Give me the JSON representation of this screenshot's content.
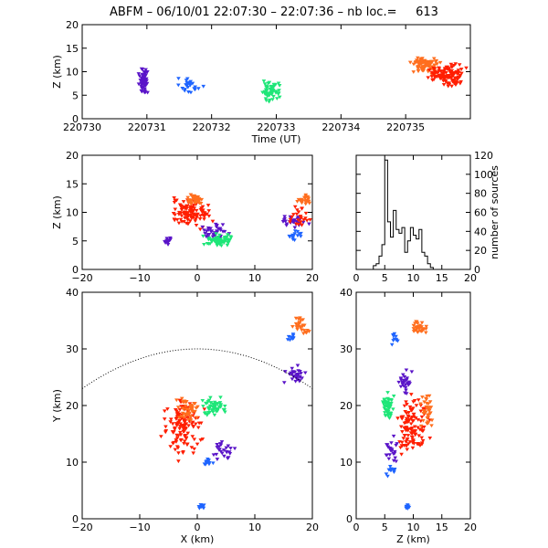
{
  "title": "ABFM – 06/10/01 22:07:30 – 22:07:36 – nb loc.=     613",
  "colors": {
    "purple": "#5a14c8",
    "blue": "#1e64ff",
    "green": "#1ee678",
    "orange": "#ff6e1e",
    "red": "#ff1e00"
  },
  "chart_data": [
    {
      "id": "time_height",
      "type": "scatter",
      "xlabel": "Time (UT)",
      "ylabel": "Z (km)",
      "xlim": [
        220730,
        220736
      ],
      "ylim": [
        0,
        20
      ],
      "xticks": [
        "220730",
        "220731",
        "220732",
        "220733",
        "220734",
        "220735"
      ],
      "yticks": [
        "0",
        "5",
        "10",
        "15",
        "20"
      ],
      "clusters": [
        {
          "color": "purple",
          "x": [
            220730.85,
            220731.05
          ],
          "y": [
            4.5,
            11.5
          ],
          "n": 70
        },
        {
          "color": "blue",
          "x": [
            220731.4,
            220731.9
          ],
          "y": [
            4.5,
            9.5
          ],
          "n": 25
        },
        {
          "color": "green",
          "x": [
            220732.7,
            220733.1
          ],
          "y": [
            3.5,
            8.5
          ],
          "n": 60
        },
        {
          "color": "orange",
          "x": [
            220735.0,
            220735.6
          ],
          "y": [
            9.0,
            14.0
          ],
          "n": 80
        },
        {
          "color": "red",
          "x": [
            220735.3,
            220736.0
          ],
          "y": [
            6.0,
            12.5
          ],
          "n": 120
        }
      ]
    },
    {
      "id": "x_z",
      "type": "scatter",
      "xlabel": "",
      "ylabel": "Z (km)",
      "xlim": [
        -20,
        20
      ],
      "ylim": [
        0,
        20
      ],
      "xticks": [
        "−20",
        "−10",
        "0",
        "10",
        "20"
      ],
      "yticks": [
        "0",
        "5",
        "10",
        "15",
        "20"
      ],
      "clusters": [
        {
          "color": "red",
          "x": [
            -6.5,
            3.5
          ],
          "y": [
            6.5,
            13.0
          ],
          "n": 110
        },
        {
          "color": "orange",
          "x": [
            -2.5,
            1.5
          ],
          "y": [
            11.0,
            13.5
          ],
          "n": 40
        },
        {
          "color": "purple",
          "x": [
            -6.0,
            -4.0
          ],
          "y": [
            4.0,
            6.0
          ],
          "n": 15
        },
        {
          "color": "purple",
          "x": [
            -0.5,
            7.0
          ],
          "y": [
            4.5,
            8.5
          ],
          "n": 35
        },
        {
          "color": "green",
          "x": [
            0.5,
            7.0
          ],
          "y": [
            3.5,
            6.5
          ],
          "n": 60
        },
        {
          "color": "purple",
          "x": [
            14.0,
            20.0
          ],
          "y": [
            7.0,
            10.0
          ],
          "n": 30
        },
        {
          "color": "blue",
          "x": [
            15.5,
            18.5
          ],
          "y": [
            5.0,
            7.0
          ],
          "n": 15
        },
        {
          "color": "orange",
          "x": [
            17.0,
            20.0
          ],
          "y": [
            11.0,
            13.5
          ],
          "n": 25
        },
        {
          "color": "red",
          "x": [
            15.5,
            20.0
          ],
          "y": [
            6.5,
            12.0
          ],
          "n": 25
        }
      ]
    },
    {
      "id": "histogram",
      "type": "bar",
      "xlabel": "",
      "ylabel": "number of sources",
      "xlim": [
        0,
        20
      ],
      "ylim": [
        0,
        120
      ],
      "xticks": [
        "0",
        "5",
        "10",
        "15",
        "20"
      ],
      "yticks": [
        "0",
        "20",
        "40",
        "60",
        "80",
        "100",
        "120"
      ],
      "bin_width": 0.5,
      "bin_start": 3.0,
      "values": [
        4,
        6,
        14,
        26,
        115,
        50,
        34,
        62,
        42,
        38,
        44,
        18,
        30,
        44,
        36,
        32,
        42,
        18,
        14,
        6,
        2
      ]
    },
    {
      "id": "x_y",
      "type": "scatter",
      "xlabel": "X (km)",
      "ylabel": "Y (km)",
      "xlim": [
        -20,
        20
      ],
      "ylim": [
        0,
        40
      ],
      "xticks": [
        "−20",
        "−10",
        "0",
        "10",
        "20"
      ],
      "yticks": [
        "0",
        "10",
        "20",
        "30",
        "40"
      ],
      "clusters": [
        {
          "color": "red",
          "x": [
            -7.0,
            2.0
          ],
          "y": [
            9.0,
            24.0
          ],
          "n": 130
        },
        {
          "color": "orange",
          "x": [
            -4.0,
            1.0
          ],
          "y": [
            16.5,
            22.0
          ],
          "n": 45
        },
        {
          "color": "green",
          "x": [
            0.0,
            6.0
          ],
          "y": [
            17.5,
            22.0
          ],
          "n": 55
        },
        {
          "color": "purple",
          "x": [
            2.0,
            7.0
          ],
          "y": [
            10.0,
            14.0
          ],
          "n": 25
        },
        {
          "color": "blue",
          "x": [
            0.5,
            3.0
          ],
          "y": [
            8.5,
            11.0
          ],
          "n": 12
        },
        {
          "color": "blue",
          "x": [
            0.0,
            1.5
          ],
          "y": [
            1.5,
            3.0
          ],
          "n": 10
        },
        {
          "color": "purple",
          "x": [
            14.5,
            20.0
          ],
          "y": [
            23.5,
            27.5
          ],
          "n": 30
        },
        {
          "color": "orange",
          "x": [
            16.0,
            20.0
          ],
          "y": [
            32.0,
            36.0
          ],
          "n": 30
        },
        {
          "color": "blue",
          "x": [
            15.5,
            17.5
          ],
          "y": [
            31.0,
            33.0
          ],
          "n": 10
        }
      ]
    },
    {
      "id": "z_y",
      "type": "scatter",
      "xlabel": "Z (km)",
      "ylabel": "",
      "xlim": [
        0,
        20
      ],
      "ylim": [
        0,
        40
      ],
      "xticks": [
        "0",
        "5",
        "10",
        "15",
        "20"
      ],
      "yticks": [
        "0",
        "10",
        "20",
        "30",
        "40"
      ],
      "clusters": [
        {
          "color": "red",
          "x": [
            6.0,
            13.5
          ],
          "y": [
            10.0,
            24.0
          ],
          "n": 120
        },
        {
          "color": "orange",
          "x": [
            11.0,
            14.0
          ],
          "y": [
            14.0,
            24.0
          ],
          "n": 35
        },
        {
          "color": "green",
          "x": [
            4.0,
            7.0
          ],
          "y": [
            16.0,
            23.0
          ],
          "n": 55
        },
        {
          "color": "purple",
          "x": [
            4.5,
            7.5
          ],
          "y": [
            9.0,
            15.0
          ],
          "n": 25
        },
        {
          "color": "blue",
          "x": [
            5.0,
            7.0
          ],
          "y": [
            7.0,
            11.0
          ],
          "n": 12
        },
        {
          "color": "blue",
          "x": [
            8.5,
            9.5
          ],
          "y": [
            1.5,
            3.0
          ],
          "n": 8
        },
        {
          "color": "purple",
          "x": [
            7.0,
            10.0
          ],
          "y": [
            21.0,
            27.0
          ],
          "n": 30
        },
        {
          "color": "orange",
          "x": [
            9.0,
            13.5
          ],
          "y": [
            31.5,
            35.5
          ],
          "n": 30
        },
        {
          "color": "blue",
          "x": [
            6.0,
            7.5
          ],
          "y": [
            30.5,
            33.0
          ],
          "n": 10
        }
      ]
    }
  ]
}
